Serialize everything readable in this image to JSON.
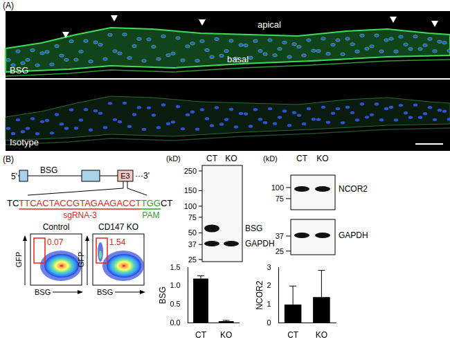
{
  "panel_a": {
    "label": "(A)",
    "top_image": {
      "label": "BSG",
      "annotations": [
        "apical",
        "basal"
      ]
    },
    "bottom_image": {
      "label": "Isotype"
    }
  },
  "panel_b": {
    "label": "(B)",
    "gene": {
      "name": "BSG",
      "five_prime": "5'",
      "three_prime": "3'",
      "exon": "E3",
      "ellipsis": "···",
      "sequence": {
        "before": "TC",
        "sgrna": "TTCACTACCGTAGAAGACCT",
        "pam": "TGG",
        "after": "CT"
      },
      "sgrna_label": "sgRNA-3",
      "pam_label": "PAM"
    },
    "flow": [
      {
        "title": "Control",
        "gate_value": 0.07
      },
      {
        "title": "CD147 KO",
        "gate_value": 1.54
      }
    ],
    "flow_x_label": "BSG",
    "flow_y_label": "GFP",
    "blots": [
      {
        "unit": "(kD)",
        "lanes": [
          "CT",
          "KO"
        ],
        "sections": [
          {
            "markers": [
              250,
              150,
              100,
              75,
              50,
              37,
              25
            ],
            "bands": [
              "BSG",
              "GAPDH"
            ]
          }
        ]
      },
      {
        "unit": "(kD)",
        "lanes": [
          "CT",
          "KO"
        ],
        "sections": [
          {
            "markers": [
              100,
              75
            ],
            "bands": [
              "NCOR2"
            ]
          },
          {
            "markers": [
              37,
              25
            ],
            "bands": [
              "GAPDH"
            ]
          }
        ]
      }
    ]
  },
  "chart_data": [
    {
      "type": "bar",
      "categories": [
        "CT",
        "KO"
      ],
      "values": [
        1.2,
        0.05
      ],
      "errors": [
        0.08,
        0.02
      ],
      "color": "#000000",
      "y_label": "BSG",
      "ylim": [
        0,
        1.5
      ],
      "yticks": [
        {
          "value": 0,
          "label": "0.0"
        },
        0.5,
        {
          "value": 1,
          "label": "1.0"
        },
        1.5
      ],
      "grid": false
    },
    {
      "type": "bar",
      "categories": [
        "CT",
        "KO"
      ],
      "values": [
        1.0,
        1.4
      ],
      "errors": [
        1.0,
        1.45
      ],
      "color": "#000000",
      "y_label": "NCOR2",
      "ylim": [
        0,
        3
      ],
      "yticks": [
        0,
        1,
        2,
        3
      ],
      "grid": false
    }
  ]
}
